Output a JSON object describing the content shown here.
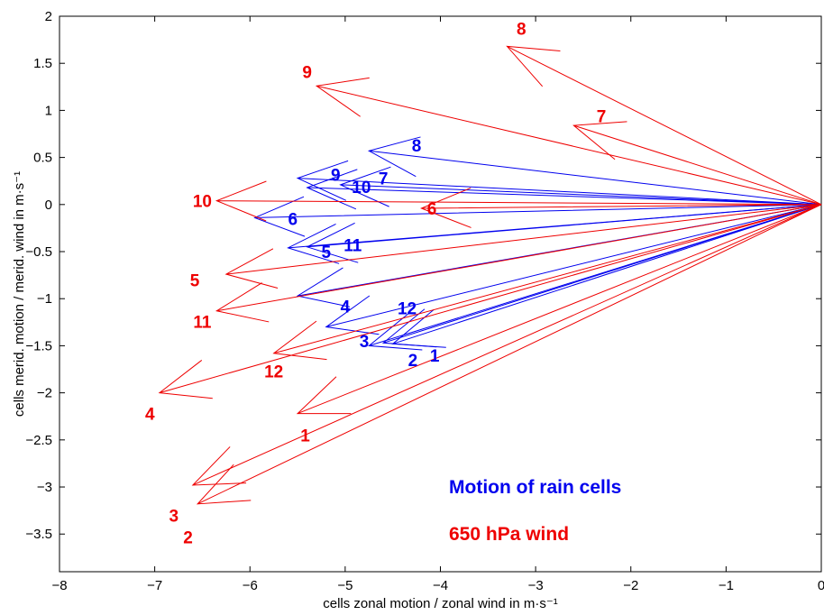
{
  "chart_data": {
    "type": "quiver",
    "origin": [
      0,
      0
    ],
    "xlabel": "cells zonal motion / zonal wind in m·s⁻¹",
    "ylabel": "cells merid. motion / merid. wind in m·s⁻¹",
    "xlim": [
      -8,
      0
    ],
    "ylim": [
      -3.9,
      2
    ],
    "xticks": [
      -8,
      -7,
      -6,
      -5,
      -4,
      -3,
      -2,
      -1,
      0
    ],
    "xtick_labels": [
      "−8",
      "−7",
      "−6",
      "−5",
      "−4",
      "−3",
      "−2",
      "−1",
      "0"
    ],
    "yticks": [
      2,
      1.5,
      1,
      0.5,
      0,
      -0.5,
      -1,
      -1.5,
      -2,
      -2.5,
      -3,
      -3.5
    ],
    "ytick_labels": [
      "2",
      "1.5",
      "1",
      "0.5",
      "0",
      "−0.5",
      "−1",
      "−1.5",
      "−2",
      "−2.5",
      "−3",
      "−3.5"
    ],
    "grid": false,
    "legend_position": "bottom-right",
    "series": [
      {
        "name": "Motion of rain cells",
        "color": "#0000ee",
        "vectors": [
          {
            "label": "1",
            "x": -4.5,
            "y": -1.48
          },
          {
            "label": "2",
            "x": -4.6,
            "y": -1.47
          },
          {
            "label": "3",
            "x": -4.75,
            "y": -1.5
          },
          {
            "label": "4",
            "x": -5.2,
            "y": -1.3
          },
          {
            "label": "5",
            "x": -5.6,
            "y": -0.46
          },
          {
            "label": "6",
            "x": -5.95,
            "y": -0.14
          },
          {
            "label": "7",
            "x": -5.05,
            "y": 0.21
          },
          {
            "label": "8",
            "x": -4.75,
            "y": 0.57
          },
          {
            "label": "9",
            "x": -5.5,
            "y": 0.28
          },
          {
            "label": "10",
            "x": -5.4,
            "y": 0.18
          },
          {
            "label": "11",
            "x": -5.4,
            "y": -0.45
          },
          {
            "label": "12",
            "x": -5.5,
            "y": -0.97
          }
        ]
      },
      {
        "name": "650 hPa wind",
        "color": "#ee0000",
        "vectors": [
          {
            "label": "1",
            "x": -5.5,
            "y": -2.22
          },
          {
            "label": "2",
            "x": -6.55,
            "y": -3.18
          },
          {
            "label": "3",
            "x": -6.6,
            "y": -2.98
          },
          {
            "label": "4",
            "x": -6.95,
            "y": -2.0
          },
          {
            "label": "5",
            "x": -6.25,
            "y": -0.74
          },
          {
            "label": "6",
            "x": -4.2,
            "y": -0.04
          },
          {
            "label": "7",
            "x": -2.6,
            "y": 0.84
          },
          {
            "label": "8",
            "x": -3.3,
            "y": 1.68
          },
          {
            "label": "9",
            "x": -5.3,
            "y": 1.26
          },
          {
            "label": "10",
            "x": -6.35,
            "y": 0.04
          },
          {
            "label": "11",
            "x": -6.35,
            "y": -1.13
          },
          {
            "label": "12",
            "x": -5.75,
            "y": -1.58
          }
        ]
      }
    ],
    "annotations": [
      {
        "text": "1",
        "x": -4.06,
        "y": -1.6,
        "series": 0
      },
      {
        "text": "2",
        "x": -4.29,
        "y": -1.65,
        "series": 0
      },
      {
        "text": "3",
        "x": -4.8,
        "y": -1.45,
        "series": 0
      },
      {
        "text": "4",
        "x": -5.0,
        "y": -1.08,
        "series": 0
      },
      {
        "text": "5",
        "x": -5.2,
        "y": -0.5,
        "series": 0
      },
      {
        "text": "6",
        "x": -5.55,
        "y": -0.15,
        "series": 0
      },
      {
        "text": "7",
        "x": -4.6,
        "y": 0.28,
        "series": 0
      },
      {
        "text": "8",
        "x": -4.25,
        "y": 0.63,
        "series": 0
      },
      {
        "text": "9",
        "x": -5.1,
        "y": 0.32,
        "series": 0
      },
      {
        "text": "10",
        "x": -4.83,
        "y": 0.19,
        "series": 0
      },
      {
        "text": "11",
        "x": -4.92,
        "y": -0.43,
        "series": 0
      },
      {
        "text": "12",
        "x": -4.35,
        "y": -1.1,
        "series": 0
      },
      {
        "text": "1",
        "x": -5.42,
        "y": -2.45,
        "series": 1
      },
      {
        "text": "2",
        "x": -6.65,
        "y": -3.53,
        "series": 1
      },
      {
        "text": "3",
        "x": -6.8,
        "y": -3.3,
        "series": 1
      },
      {
        "text": "4",
        "x": -7.05,
        "y": -2.22,
        "series": 1
      },
      {
        "text": "5",
        "x": -6.58,
        "y": -0.8,
        "series": 1
      },
      {
        "text": "6",
        "x": -4.09,
        "y": -0.04,
        "series": 1
      },
      {
        "text": "7",
        "x": -2.31,
        "y": 0.94,
        "series": 1
      },
      {
        "text": "8",
        "x": -3.15,
        "y": 1.87,
        "series": 1
      },
      {
        "text": "9",
        "x": -5.4,
        "y": 1.41,
        "series": 1
      },
      {
        "text": "10",
        "x": -6.5,
        "y": 0.04,
        "series": 1
      },
      {
        "text": "11",
        "x": -6.5,
        "y": -1.24,
        "series": 1
      },
      {
        "text": "12",
        "x": -5.75,
        "y": -1.77,
        "series": 1
      }
    ]
  },
  "legend": [
    {
      "text": "Motion of rain cells",
      "color": "#0000ee"
    },
    {
      "text": "650 hPa wind",
      "color": "#ee0000"
    }
  ]
}
